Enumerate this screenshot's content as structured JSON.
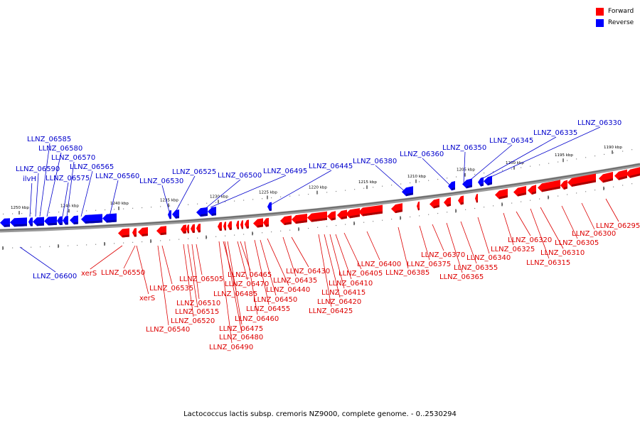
{
  "legend": {
    "forward_label": "Forward",
    "reverse_label": "Reverse",
    "forward_color": "#ff0000",
    "reverse_color": "#0000ff"
  },
  "caption": "Lactococcus lactis subsp. cremoris NZ9000, complete genome. - 0..2530294",
  "axis_ticks": [
    "1250 kbp",
    "1245 kbp",
    "1240 kbp",
    "1235 kbp",
    "1230 kbp",
    "1225 kbp",
    "1220 kbp",
    "1215 kbp",
    "1210 kbp",
    "1205 kbp",
    "1200 kbp",
    "1195 kbp",
    "1190 kbp"
  ],
  "reverse_genes": [
    "LLNZ_06600",
    "ilvH",
    "LLNZ_06590",
    "LLNZ_06585",
    "LLNZ_06580",
    "LLNZ_06575",
    "LLNZ_06570",
    "LLNZ_06565",
    "LLNZ_06560",
    "LLNZ_06530",
    "LLNZ_06525",
    "LLNZ_06500",
    "LLNZ_06495",
    "LLNZ_06445",
    "LLNZ_06380",
    "LLNZ_06360",
    "LLNZ_06350",
    "LLNZ_06345",
    "LLNZ_06335",
    "LLNZ_06330"
  ],
  "forward_genes": [
    "xerS",
    "LLNZ_06550",
    "xerS",
    "LLNZ_06540",
    "LLNZ_06535",
    "LLNZ_06520",
    "LLNZ_06515",
    "LLNZ_06510",
    "LLNZ_06505",
    "LLNZ_06490",
    "LLNZ_06485",
    "LLNZ_06480",
    "LLNZ_06475",
    "LLNZ_06470",
    "LLNZ_06465",
    "LLNZ_06460",
    "LLNZ_06455",
    "LLNZ_06450",
    "LLNZ_06440",
    "LLNZ_06435",
    "LLNZ_06430",
    "LLNZ_06425",
    "LLNZ_06420",
    "LLNZ_06415",
    "LLNZ_06410",
    "LLNZ_06405",
    "LLNZ_06400",
    "LLNZ_06385",
    "LLNZ_06375",
    "LLNZ_06370",
    "LLNZ_06365",
    "LLNZ_06355",
    "LLNZ_06340",
    "LLNZ_06325",
    "LLNZ_06320",
    "LLNZ_06315",
    "LLNZ_06310",
    "LLNZ_06305",
    "LLNZ_06300",
    "LLNZ_06295"
  ]
}
